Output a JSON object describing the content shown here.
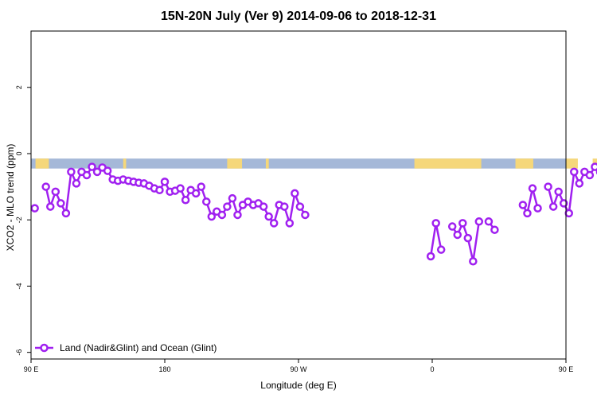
{
  "chart_data": {
    "type": "line",
    "title": "15N-20N July (Ver 9)   2014-09-06 to 2018-12-31",
    "xlabel": "Longitude (deg E)",
    "ylabel": "XCO2 - MLO trend (ppm)",
    "xlim": [
      90,
      450
    ],
    "ylim": [
      -6.2,
      3.7
    ],
    "x_ticks": [
      {
        "value": 90,
        "label": "90 E"
      },
      {
        "value": 180,
        "label": "180"
      },
      {
        "value": 270,
        "label": "90 W"
      },
      {
        "value": 360,
        "label": "0"
      },
      {
        "value": 450,
        "label": "90 E"
      },
      {
        "value": 540,
        "label": "180"
      }
    ],
    "y_ticks": [
      {
        "value": 2,
        "label": "2"
      },
      {
        "value": 0,
        "label": "0"
      },
      {
        "value": -2,
        "label": "-2"
      },
      {
        "value": -4,
        "label": "-4"
      },
      {
        "value": -6,
        "label": "-6"
      }
    ],
    "legend_position": "bottom-left",
    "grid": false,
    "colors": {
      "series": "#a020f0",
      "ocean": "#a5b8d8",
      "land": "#f5d77a",
      "axis": "#000000"
    },
    "series": [
      {
        "name": "Land (Nadir&Glint) and Ocean (Glint)",
        "segments": [
          [
            [
              92.5,
              -1.65
            ]
          ],
          [
            [
              100,
              -1.0
            ],
            [
              103,
              -1.6
            ],
            [
              106.5,
              -1.15
            ],
            [
              110,
              -1.5
            ],
            [
              113.5,
              -1.8
            ],
            [
              117,
              -0.55
            ],
            [
              120.5,
              -0.9
            ],
            [
              124,
              -0.55
            ],
            [
              127.5,
              -0.65
            ],
            [
              131,
              -0.4
            ],
            [
              134.5,
              -0.55
            ],
            [
              138,
              -0.42
            ],
            [
              141.5,
              -0.52
            ],
            [
              145,
              -0.78
            ],
            [
              148.5,
              -0.82
            ],
            [
              152,
              -0.78
            ],
            [
              155.5,
              -0.82
            ],
            [
              159,
              -0.85
            ],
            [
              162.5,
              -0.88
            ],
            [
              166,
              -0.9
            ],
            [
              169.5,
              -0.97
            ],
            [
              173,
              -1.05
            ],
            [
              176.5,
              -1.1
            ],
            [
              180,
              -0.85
            ],
            [
              183.5,
              -1.15
            ],
            [
              187,
              -1.12
            ],
            [
              190.5,
              -1.05
            ],
            [
              194,
              -1.4
            ],
            [
              197.5,
              -1.1
            ],
            [
              201,
              -1.2
            ],
            [
              204.5,
              -1.0
            ],
            [
              208,
              -1.45
            ],
            [
              211.5,
              -1.9
            ],
            [
              215,
              -1.75
            ],
            [
              218.5,
              -1.85
            ],
            [
              222,
              -1.6
            ],
            [
              225.5,
              -1.35
            ],
            [
              229,
              -1.85
            ],
            [
              232.5,
              -1.55
            ],
            [
              236,
              -1.45
            ],
            [
              239.5,
              -1.55
            ],
            [
              243,
              -1.5
            ],
            [
              246.5,
              -1.6
            ],
            [
              250,
              -1.9
            ],
            [
              253.5,
              -2.1
            ],
            [
              257,
              -1.55
            ],
            [
              260.5,
              -1.6
            ],
            [
              264,
              -2.1
            ],
            [
              267.5,
              -1.2
            ],
            [
              271,
              -1.6
            ],
            [
              274.5,
              -1.85
            ]
          ],
          [
            [
              359,
              -3.1
            ],
            [
              362.5,
              -2.1
            ],
            [
              366,
              -2.9
            ]
          ],
          [
            [
              373.5,
              -2.2
            ],
            [
              377,
              -2.45
            ],
            [
              380.5,
              -2.1
            ],
            [
              384,
              -2.55
            ],
            [
              387.5,
              -3.25
            ],
            [
              391.5,
              -2.05
            ]
          ],
          [
            [
              398,
              -2.05
            ],
            [
              402,
              -2.3
            ]
          ],
          [
            [
              421,
              -1.55
            ],
            [
              424,
              -1.8
            ],
            [
              427.5,
              -1.05
            ],
            [
              431,
              -1.65
            ]
          ],
          [
            [
              438,
              -1.0
            ],
            [
              441.5,
              -1.6
            ],
            [
              445,
              -1.15
            ],
            [
              448.5,
              -1.5
            ],
            [
              452,
              -1.8
            ],
            [
              455.5,
              -0.55
            ],
            [
              459,
              -0.9
            ],
            [
              462.5,
              -0.55
            ],
            [
              466,
              -0.65
            ],
            [
              469.5,
              -0.4
            ],
            [
              473,
              -0.55
            ],
            [
              476.5,
              -0.45
            ],
            [
              480,
              -0.55
            ],
            [
              483.5,
              -0.78
            ],
            [
              487,
              -0.85
            ],
            [
              490.5,
              -0.8
            ]
          ]
        ]
      }
    ],
    "background_strip": {
      "y_range": [
        -0.45,
        -0.15
      ],
      "land_longitudes": [
        [
          93,
          102
        ],
        [
          152,
          154
        ],
        [
          222,
          232
        ],
        [
          248,
          250
        ],
        [
          348,
          393
        ],
        [
          416,
          428
        ],
        [
          450,
          458
        ],
        [
          468,
          472
        ]
      ]
    }
  }
}
